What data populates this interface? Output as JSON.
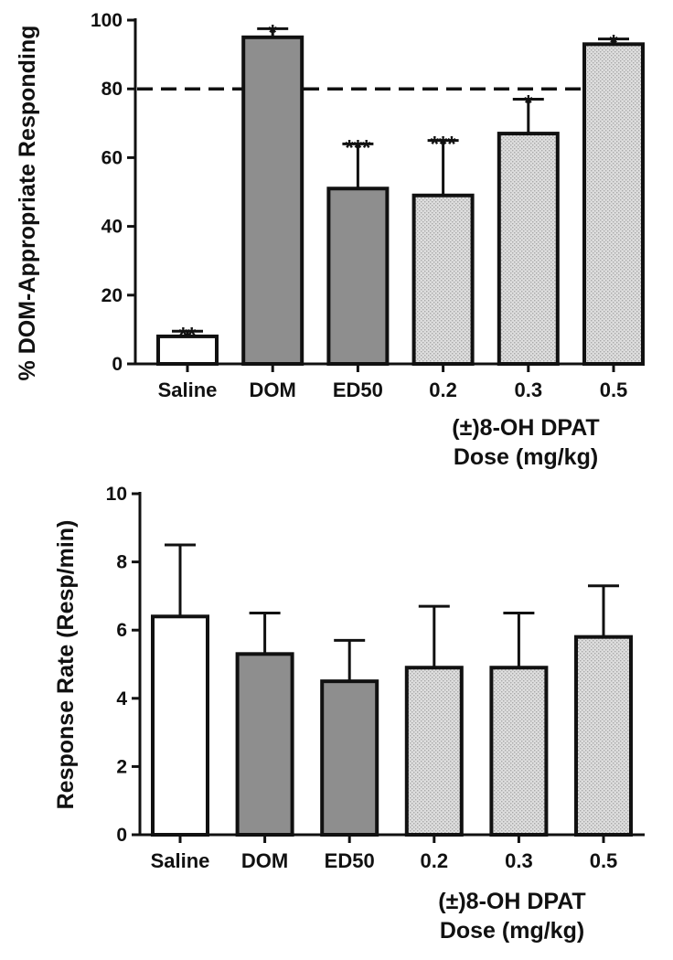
{
  "chart_data": [
    {
      "type": "bar",
      "ylabel": "% DOM-Appropriate Responding",
      "xlabel": "(±)8-OH DPAT Dose (mg/kg)",
      "categories": [
        "Saline",
        "DOM",
        "ED50",
        "0.2",
        "0.3",
        "0.5"
      ],
      "values": [
        8,
        95,
        51,
        49,
        67,
        93
      ],
      "error": [
        1.5,
        2.5,
        13,
        16,
        10,
        1.5
      ],
      "annotations": [
        "**",
        "*",
        "***",
        "***",
        "*",
        "*"
      ],
      "reference_line": 80,
      "ylim": [
        0,
        100
      ],
      "yticks": [
        0,
        20,
        40,
        60,
        80,
        100
      ],
      "fills": [
        "white",
        "dark-gray",
        "dark-gray",
        "light-gray",
        "light-gray",
        "light-gray"
      ],
      "grid": false
    },
    {
      "type": "bar",
      "ylabel": "Response Rate (Resp/min)",
      "xlabel": "(±)8-OH DPAT Dose (mg/kg)",
      "categories": [
        "Saline",
        "DOM",
        "ED50",
        "0.2",
        "0.3",
        "0.5"
      ],
      "values": [
        6.4,
        5.3,
        4.5,
        4.9,
        4.9,
        5.8
      ],
      "error": [
        2.1,
        1.2,
        1.2,
        1.8,
        1.6,
        1.5
      ],
      "ylim": [
        0,
        10
      ],
      "yticks": [
        0,
        2,
        4,
        6,
        8,
        10
      ],
      "fills": [
        "white",
        "dark-gray",
        "dark-gray",
        "light-gray",
        "light-gray",
        "light-gray"
      ],
      "grid": false
    }
  ],
  "colors": {
    "white": "#ffffff",
    "dark-gray": "#8e8e8e",
    "light-gray": "#d8d8d8",
    "ink": "#111111"
  }
}
